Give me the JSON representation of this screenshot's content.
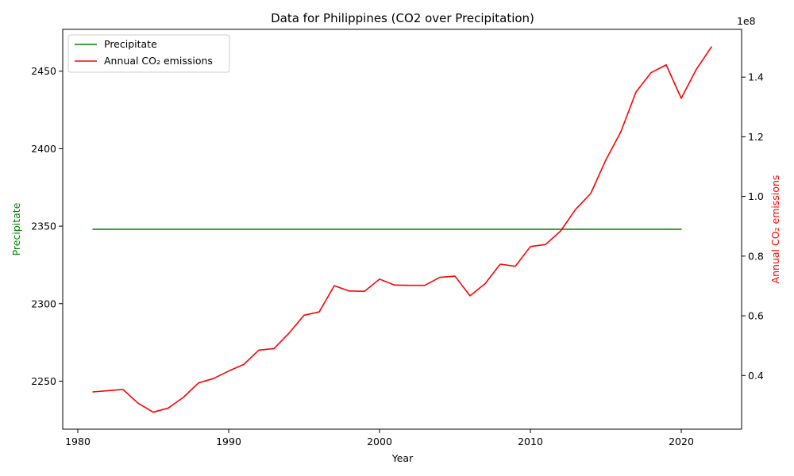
{
  "chart_data": {
    "type": "line",
    "title": "Data for Philippines (CO2 over Precipitation)",
    "xlabel": "Year",
    "ylabel_left": "Precipitate",
    "ylabel_right": "Annual CO₂ emissions",
    "right_axis_offset_label": "1e8",
    "xlim": [
      1979,
      2024
    ],
    "ylim_left": [
      2219,
      2477
    ],
    "ylim_right": [
      22000000,
      156000000
    ],
    "x_ticks": [
      1980,
      1990,
      2000,
      2010,
      2020
    ],
    "y_ticks_left": [
      2250,
      2300,
      2350,
      2400,
      2450
    ],
    "y_ticks_right": [
      0.4,
      0.6,
      0.8,
      1.0,
      1.2,
      1.4
    ],
    "legend_position": "top-left",
    "colors": {
      "left": "#008000",
      "right": "#ff0000"
    },
    "series": [
      {
        "name": "Precipitate",
        "axis": "left",
        "color": "#008000",
        "x": [
          1981,
          2020
        ],
        "values": [
          2348,
          2348
        ]
      },
      {
        "name": "Annual CO₂ emissions",
        "axis": "right",
        "color": "#ff0000",
        "x": [
          1981,
          1982,
          1983,
          1984,
          1985,
          1986,
          1987,
          1988,
          1989,
          1990,
          1991,
          1992,
          1993,
          1994,
          1995,
          1996,
          1997,
          1998,
          1999,
          2000,
          2001,
          2002,
          2003,
          2004,
          2005,
          2006,
          2007,
          2008,
          2009,
          2010,
          2011,
          2012,
          2013,
          2014,
          2015,
          2016,
          2017,
          2018,
          2019,
          2020,
          2021,
          2022
        ],
        "values": [
          34500000,
          34900000,
          35300000,
          30700000,
          27700000,
          29100000,
          32700000,
          37500000,
          39000000,
          41500000,
          43700000,
          48500000,
          49000000,
          54200000,
          60200000,
          61300000,
          70100000,
          68300000,
          68200000,
          72300000,
          70300000,
          70200000,
          70200000,
          72900000,
          73300000,
          66700000,
          70800000,
          77300000,
          76600000,
          83200000,
          83900000,
          88400000,
          95700000,
          101000000,
          112200000,
          121700000,
          135000000,
          141500000,
          144100000,
          132900000,
          142600000,
          150100000
        ]
      }
    ]
  }
}
